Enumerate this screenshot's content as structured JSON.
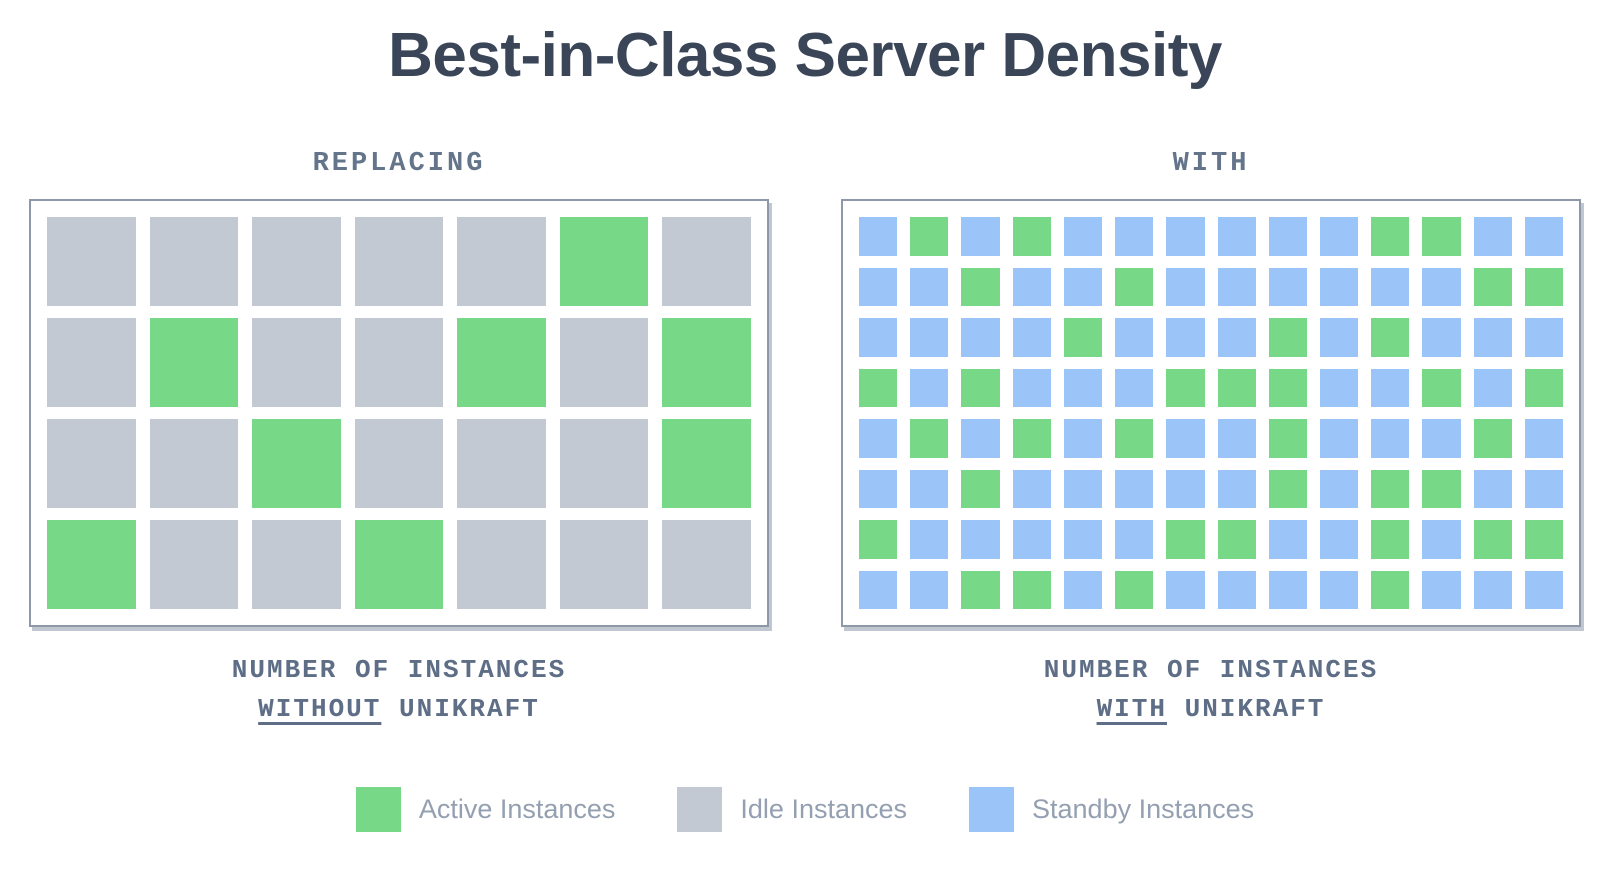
{
  "title": "Best-in-Class Server Density",
  "colors": {
    "active": "#77D988",
    "idle": "#C2C9D3",
    "standby": "#9BC4F8",
    "title_text": "#3A4658",
    "heading_text": "#64748B",
    "caption_text": "#5E6E87",
    "legend_text": "#94A0B1",
    "panel_border": "#8D99A9",
    "panel_bg": "#FFFFFF"
  },
  "cell_legend_codes": {
    "A": "active",
    "I": "idle",
    "S": "standby"
  },
  "panels": {
    "left": {
      "header": "REPLACING",
      "caption_line1": "NUMBER OF INSTANCES",
      "caption_underlined": "WITHOUT",
      "caption_rest": "UNIKRAFT",
      "grid": {
        "columns": 7,
        "rows": [
          "IIIIIAI",
          "IAIIAIA",
          "IIAIIIA",
          "AIIAIII"
        ]
      }
    },
    "right": {
      "header": "WITH",
      "caption_line1": "NUMBER OF INSTANCES",
      "caption_underlined": "WITH",
      "caption_rest": "UNIKRAFT",
      "grid": {
        "columns": 14,
        "rows": [
          "SASASSSSSSAASS",
          "SSASSASSSSSSAA",
          "SSSSASSSASASSS",
          "ASASSSAAASSASA",
          "SASASASSASSSAS",
          "SSASSSSSASAASS",
          "ASSSSSAASSASAA",
          "SSAASASSSSASSS"
        ]
      }
    }
  },
  "legend": [
    {
      "label": "Active Instances",
      "type": "A"
    },
    {
      "label": "Idle Instances",
      "type": "I"
    },
    {
      "label": "Standby Instances",
      "type": "S"
    }
  ]
}
